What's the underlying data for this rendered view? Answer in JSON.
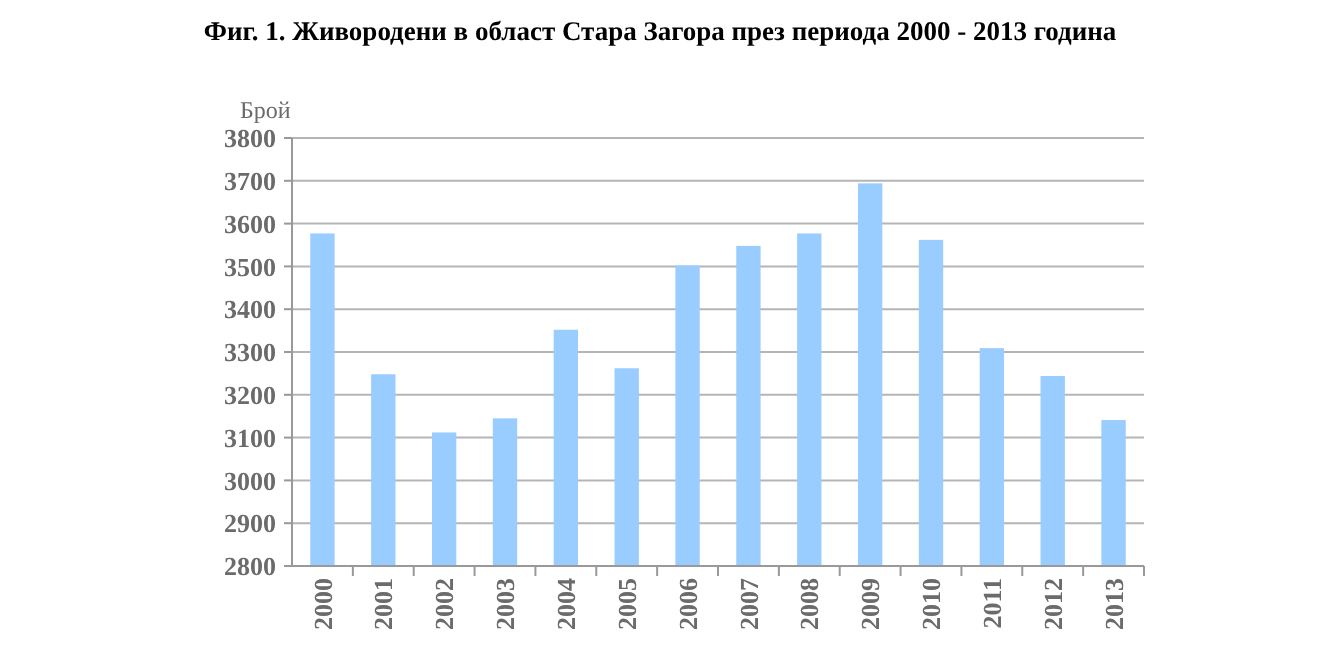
{
  "chart_data": {
    "type": "bar",
    "title": "Фиг. 1. Живородени в област Стара Загора през периода 2000 - 2013 година",
    "ylabel": "Брой",
    "categories": [
      "2000",
      "2001",
      "2002",
      "2003",
      "2004",
      "2005",
      "2006",
      "2007",
      "2008",
      "2009",
      "2010",
      "2011",
      "2012",
      "2013"
    ],
    "values": [
      3577,
      3248,
      3112,
      3145,
      3352,
      3262,
      3502,
      3548,
      3577,
      3694,
      3562,
      3309,
      3244,
      3141
    ],
    "color": "#99ccff",
    "ylim": [
      2800,
      3800
    ],
    "yticks": [
      2800,
      2900,
      3000,
      3100,
      3200,
      3300,
      3400,
      3500,
      3600,
      3700,
      3800
    ],
    "grid": "y"
  }
}
